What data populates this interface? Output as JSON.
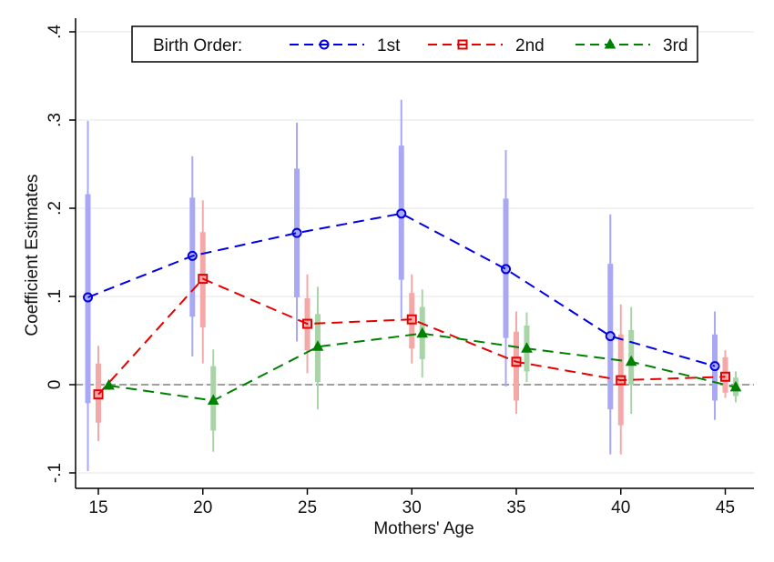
{
  "chart_data": {
    "type": "line",
    "title": "",
    "xlabel": "Mothers' Age",
    "ylabel": "Coefficient Estimates",
    "xlim": [
      14,
      46
    ],
    "ylim": [
      -0.1,
      0.4
    ],
    "x_ticks": [
      15,
      20,
      25,
      30,
      35,
      40,
      45
    ],
    "x_tick_labels": [
      "15",
      "20",
      "25",
      "30",
      "35",
      "40",
      "45"
    ],
    "y_ticks": [
      -0.1,
      0,
      0.1,
      0.2,
      0.3,
      0.4
    ],
    "y_tick_labels": [
      "-.1",
      "0",
      ".1",
      ".2",
      ".3",
      ".4"
    ],
    "grid": true,
    "reference_line": {
      "y": 0,
      "style": "dashed",
      "color": "#808080"
    },
    "legend": {
      "placement": "top-center",
      "title": "Birth Order:",
      "entries": [
        "1st",
        "2nd",
        "3rd"
      ]
    },
    "x": [
      15,
      20,
      25,
      30,
      35,
      40,
      45
    ],
    "series": [
      {
        "name": "1st",
        "color": "#0000e6",
        "ci_color": "#a8a8f4",
        "marker": "circle",
        "x_offset": -0.5,
        "values": [
          0.099,
          0.146,
          0.172,
          0.194,
          0.131,
          0.055,
          0.021
        ],
        "ci90": [
          [
            -0.021,
            0.216
          ],
          [
            0.077,
            0.212
          ],
          [
            0.099,
            0.245
          ],
          [
            0.119,
            0.271
          ],
          [
            0.053,
            0.211
          ],
          [
            -0.028,
            0.137
          ],
          [
            -0.018,
            0.057
          ]
        ],
        "ci95": [
          [
            -0.098,
            0.299
          ],
          [
            0.032,
            0.259
          ],
          [
            0.049,
            0.297
          ],
          [
            0.075,
            0.323
          ],
          [
            -0.002,
            0.266
          ],
          [
            -0.079,
            0.193
          ],
          [
            -0.04,
            0.083
          ]
        ]
      },
      {
        "name": "2nd",
        "color": "#e60000",
        "ci_color": "#f4a8a8",
        "marker": "square",
        "x_offset": 0,
        "values": [
          -0.011,
          0.12,
          0.069,
          0.074,
          0.026,
          0.005,
          0.009
        ],
        "ci90": [
          [
            -0.043,
            0.024
          ],
          [
            0.065,
            0.173
          ],
          [
            0.039,
            0.098
          ],
          [
            0.041,
            0.104
          ],
          [
            -0.018,
            0.06
          ],
          [
            -0.046,
            0.057
          ],
          [
            -0.009,
            0.031
          ]
        ],
        "ci95": [
          [
            -0.064,
            0.044
          ],
          [
            0.024,
            0.209
          ],
          [
            0.013,
            0.125
          ],
          [
            0.024,
            0.125
          ],
          [
            -0.033,
            0.083
          ],
          [
            -0.079,
            0.091
          ],
          [
            -0.015,
            0.039
          ]
        ]
      },
      {
        "name": "3rd",
        "color": "#008000",
        "ci_color": "#a8d4a8",
        "marker": "triangle",
        "x_offset": 0.5,
        "values": [
          -0.001,
          -0.018,
          0.043,
          0.058,
          0.041,
          0.026,
          -0.003
        ],
        "ci90": [
          [
            -0.004,
            0.002
          ],
          [
            -0.052,
            0.021
          ],
          [
            0.003,
            0.08
          ],
          [
            0.029,
            0.088
          ],
          [
            0.015,
            0.067
          ],
          [
            0.0,
            0.062
          ],
          [
            -0.013,
            0.008
          ]
        ],
        "ci95": [
          [
            -0.006,
            0.004
          ],
          [
            -0.076,
            0.04
          ],
          [
            -0.028,
            0.111
          ],
          [
            0.008,
            0.108
          ],
          [
            0.003,
            0.082
          ],
          [
            -0.033,
            0.088
          ],
          [
            -0.02,
            0.015
          ]
        ]
      }
    ]
  }
}
